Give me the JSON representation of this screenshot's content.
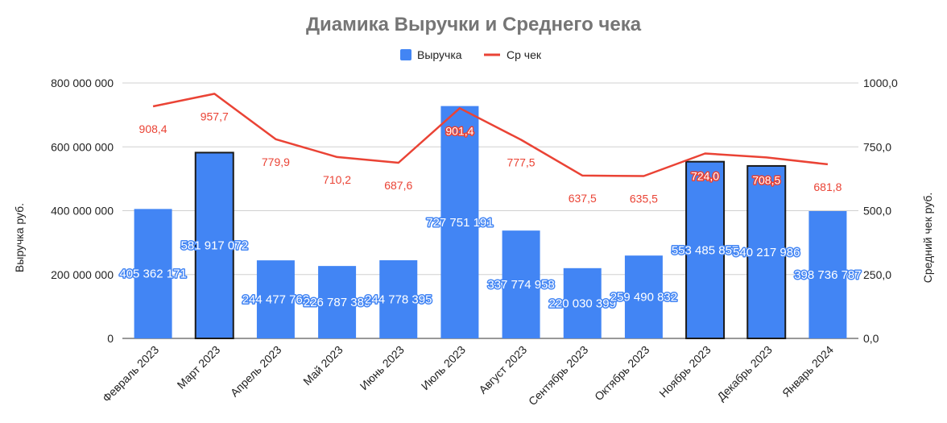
{
  "chart_data": {
    "type": "bar",
    "title": "Диамика Выручки и Среднего чека",
    "categories": [
      "Февраль 2023",
      "Март 2023",
      "Апрель 2023",
      "Май 2023",
      "Июнь 2023",
      "Июль 2023",
      "Август 2023",
      "Сентябрь 2023",
      "Октябрь 2023",
      "Ноябрь 2023",
      "Декабрь 2023",
      "Январь 2024"
    ],
    "series": [
      {
        "name": "Выручка",
        "kind": "bar",
        "axis": "left",
        "color": "#4285f4",
        "values": [
          405362171,
          581917072,
          244477762,
          226787389,
          244778395,
          727751191,
          337774958,
          220030399,
          259490832,
          553485857,
          540217986,
          398736787
        ],
        "labels": [
          "405 362 171",
          "581 917 072",
          "244 477 762",
          "226 787 389",
          "244 778 395",
          "727 751 191",
          "337 774 958",
          "220 030 399",
          "259 490 832",
          "553 485 857",
          "540 217 986",
          "398 736 787"
        ],
        "highlighted": [
          false,
          true,
          false,
          false,
          false,
          false,
          false,
          false,
          false,
          true,
          true,
          false
        ]
      },
      {
        "name": "Ср чек",
        "kind": "line",
        "axis": "right",
        "color": "#ea4335",
        "values": [
          908.4,
          957.7,
          779.9,
          710.2,
          687.6,
          901.4,
          777.5,
          637.5,
          635.5,
          724.0,
          708.5,
          681.8
        ],
        "labels": [
          "908,4",
          "957,7",
          "779,9",
          "710,2",
          "687,6",
          "901,4",
          "777,5",
          "637,5",
          "635,5",
          "724,0",
          "708,5",
          "681,8"
        ]
      }
    ],
    "y_left": {
      "label": "Выручка руб.",
      "lim": [
        0,
        800000000
      ],
      "ticks": [
        0,
        200000000,
        400000000,
        600000000,
        800000000
      ],
      "tick_labels": [
        "0",
        "200 000 000",
        "400 000 000",
        "600 000 000",
        "800 000 000"
      ]
    },
    "y_right": {
      "label": "Средний чек руб.",
      "lim": [
        0,
        1000
      ],
      "ticks": [
        0,
        250,
        500,
        750,
        1000
      ],
      "tick_labels": [
        "0,0",
        "250,0",
        "500,0",
        "750,0",
        "1000,0"
      ]
    },
    "grid": true,
    "legend": "top-center"
  }
}
